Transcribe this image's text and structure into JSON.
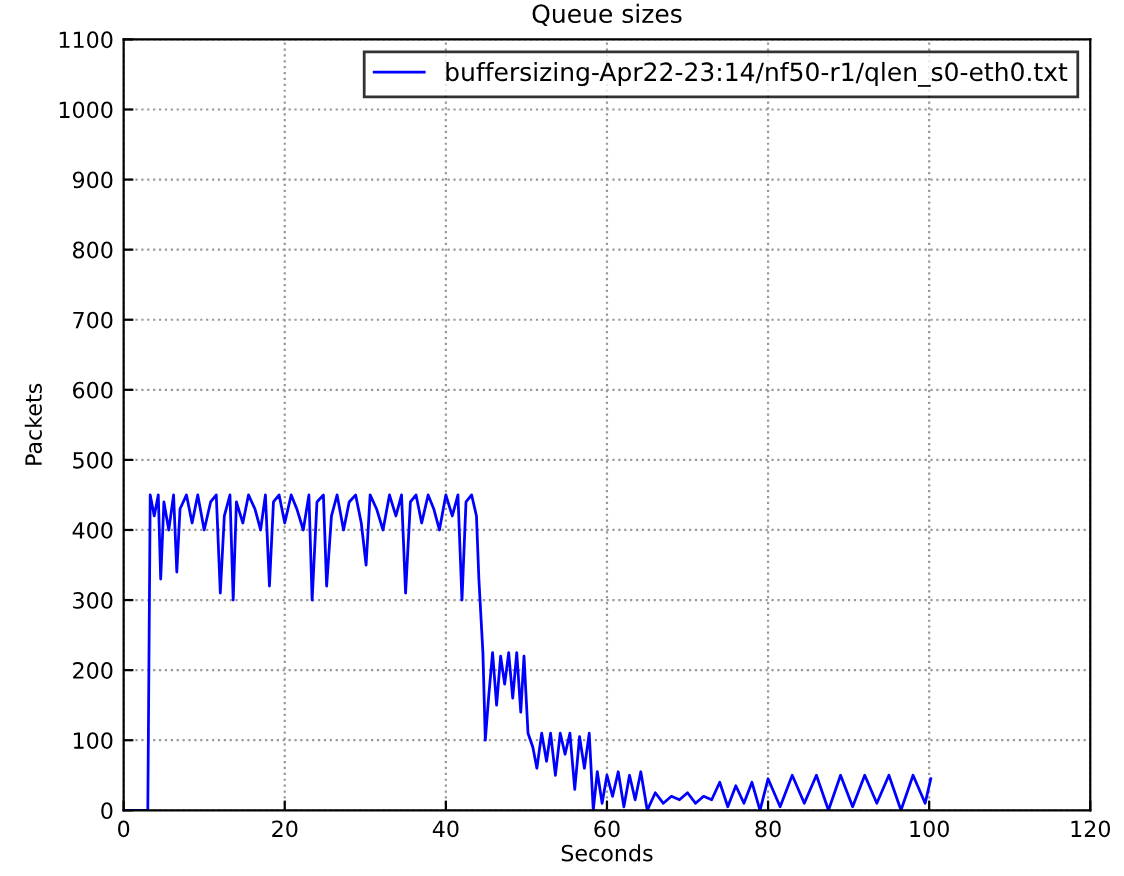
{
  "chart_data": {
    "type": "line",
    "title": "Queue sizes",
    "xlabel": "Seconds",
    "ylabel": "Packets",
    "x": [
      0,
      3.0,
      3.3,
      3.8,
      4.3,
      4.6,
      5.0,
      5.6,
      6.2,
      6.6,
      7.0,
      7.8,
      8.5,
      9.2,
      10.0,
      10.8,
      11.5,
      12.0,
      12.5,
      13.2,
      13.6,
      14.0,
      14.8,
      15.5,
      16.3,
      17.0,
      17.6,
      18.1,
      18.6,
      19.3,
      20.0,
      20.8,
      21.5,
      22.3,
      23.0,
      23.4,
      24.0,
      24.8,
      25.2,
      25.8,
      26.5,
      27.3,
      28.0,
      28.8,
      29.5,
      30.1,
      30.6,
      31.4,
      32.2,
      33.0,
      33.8,
      34.5,
      35.0,
      35.6,
      36.3,
      37.0,
      37.8,
      38.5,
      39.2,
      40.0,
      40.8,
      41.5,
      42.0,
      42.5,
      43.2,
      43.8,
      44.1,
      44.6,
      44.9,
      45.3,
      45.8,
      46.3,
      46.8,
      47.3,
      47.8,
      48.3,
      48.8,
      49.3,
      49.7,
      50.2,
      50.8,
      51.3,
      51.9,
      52.5,
      53.0,
      53.6,
      54.2,
      54.8,
      55.4,
      56.0,
      56.6,
      57.2,
      57.8,
      58.3,
      58.8,
      59.4,
      60.0,
      60.7,
      61.4,
      62.1,
      62.8,
      63.5,
      64.2,
      65.0,
      66.0,
      67.0,
      68.0,
      69.0,
      70.0,
      71.0,
      72.0,
      73.0,
      74.0,
      75.0,
      76.0,
      77.0,
      78.0,
      79.0,
      80.0,
      81.5,
      83.0,
      84.5,
      86.0,
      87.5,
      89.0,
      90.5,
      92.0,
      93.5,
      95.0,
      96.5,
      98.0,
      99.5,
      100.2
    ],
    "series": [
      {
        "name": "buffersizing-Apr22-23:14/nf50-r1/qlen_s0-eth0.txt",
        "color": "#0000ff",
        "values": [
          0,
          0,
          450,
          420,
          450,
          330,
          440,
          400,
          450,
          340,
          430,
          450,
          410,
          450,
          400,
          440,
          450,
          310,
          420,
          450,
          300,
          440,
          410,
          450,
          430,
          400,
          450,
          320,
          440,
          450,
          410,
          450,
          430,
          400,
          450,
          300,
          440,
          450,
          320,
          420,
          450,
          400,
          440,
          450,
          410,
          350,
          450,
          430,
          400,
          450,
          420,
          450,
          310,
          440,
          450,
          410,
          450,
          430,
          400,
          450,
          420,
          450,
          300,
          440,
          450,
          420,
          330,
          225,
          100,
          160,
          225,
          150,
          220,
          180,
          225,
          160,
          225,
          140,
          220,
          110,
          90,
          60,
          110,
          70,
          110,
          50,
          110,
          80,
          110,
          30,
          105,
          60,
          110,
          0,
          55,
          10,
          50,
          20,
          55,
          5,
          50,
          15,
          55,
          0,
          25,
          10,
          20,
          15,
          25,
          10,
          20,
          15,
          40,
          5,
          35,
          10,
          40,
          0,
          45,
          5,
          50,
          10,
          50,
          0,
          50,
          5,
          50,
          10,
          50,
          0,
          50,
          10,
          45
        ]
      }
    ],
    "xlim": [
      0,
      120
    ],
    "ylim": [
      0,
      1100
    ],
    "xticks": [
      0,
      20,
      40,
      60,
      80,
      100,
      120
    ],
    "yticks": [
      0,
      100,
      200,
      300,
      400,
      500,
      600,
      700,
      800,
      900,
      1000,
      1100
    ],
    "grid": true,
    "legend": "top right",
    "line_style": "solid",
    "marker": "none"
  }
}
